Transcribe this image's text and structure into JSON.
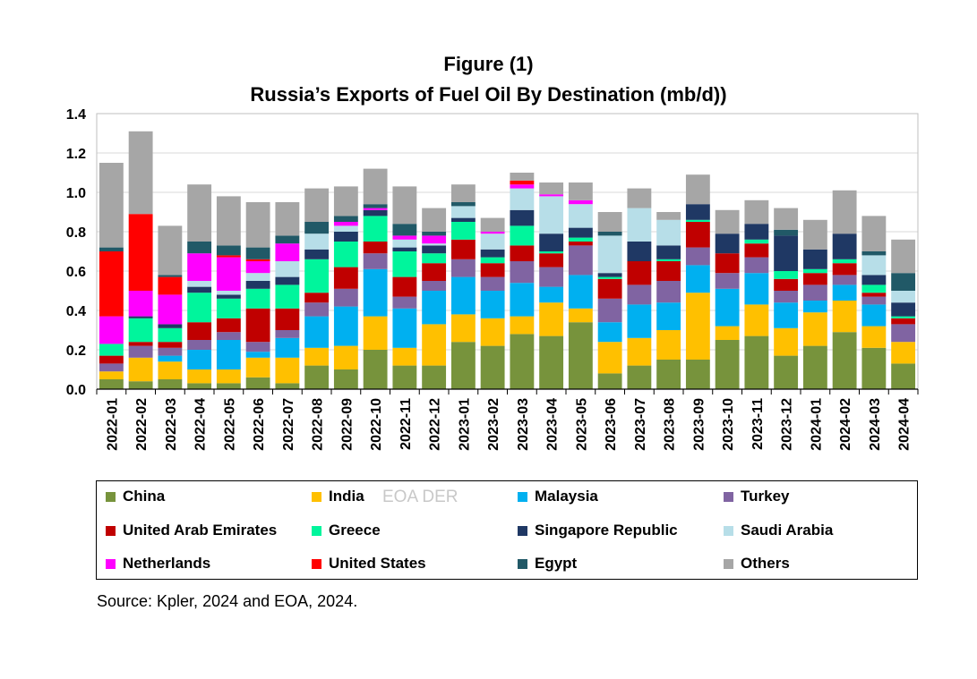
{
  "title_line1": "Figure (1)",
  "title_line2": "Russia’s Exports of Fuel Oil By Destination (mb/d))",
  "source": "Source: Kpler, 2024 and EOA, 2024.",
  "watermark": "EOA DER",
  "chart_data": {
    "type": "bar",
    "stacked": true,
    "title": "Russia’s Exports of Fuel Oil By Destination (mb/d))",
    "ylim": [
      0,
      1.4
    ],
    "yticks": [
      "0.0",
      "0.2",
      "0.4",
      "0.6",
      "0.8",
      "1.0",
      "1.2",
      "1.4"
    ],
    "grid": true,
    "legend_position": "bottom",
    "categories": [
      "2022-01",
      "2022-02",
      "2022-03",
      "2022-04",
      "2022-05",
      "2022-06",
      "2022-07",
      "2022-08",
      "2022-09",
      "2022-10",
      "2022-11",
      "2022-12",
      "2023-01",
      "2023-02",
      "2023-03",
      "2023-04",
      "2023-05",
      "2023-06",
      "2023-07",
      "2023-08",
      "2023-09",
      "2023-10",
      "2023-11",
      "2023-12",
      "2024-01",
      "2024-02",
      "2024-03",
      "2024-04"
    ],
    "series": [
      {
        "name": "China",
        "color": "#77933C",
        "values": [
          0.05,
          0.04,
          0.05,
          0.03,
          0.03,
          0.06,
          0.03,
          0.12,
          0.1,
          0.2,
          0.12,
          0.12,
          0.24,
          0.22,
          0.28,
          0.27,
          0.34,
          0.08,
          0.12,
          0.15,
          0.15,
          0.25,
          0.27,
          0.17,
          0.22,
          0.29,
          0.21,
          0.13
        ]
      },
      {
        "name": "India",
        "color": "#FFC000",
        "values": [
          0.04,
          0.12,
          0.09,
          0.07,
          0.07,
          0.1,
          0.13,
          0.09,
          0.12,
          0.17,
          0.09,
          0.21,
          0.14,
          0.14,
          0.09,
          0.17,
          0.07,
          0.16,
          0.14,
          0.15,
          0.34,
          0.07,
          0.16,
          0.14,
          0.17,
          0.16,
          0.11,
          0.11
        ]
      },
      {
        "name": "Malaysia",
        "color": "#00B0F0",
        "values": [
          0,
          0,
          0.03,
          0.1,
          0.15,
          0.03,
          0.1,
          0.16,
          0.2,
          0.24,
          0.2,
          0.17,
          0.19,
          0.14,
          0.17,
          0.08,
          0.17,
          0.1,
          0.17,
          0.14,
          0.14,
          0.19,
          0.16,
          0.13,
          0.06,
          0.08,
          0.11,
          0
        ]
      },
      {
        "name": "Turkey",
        "color": "#8064A2",
        "values": [
          0.04,
          0.06,
          0.04,
          0.05,
          0.04,
          0.05,
          0.04,
          0.07,
          0.09,
          0.08,
          0.06,
          0.05,
          0.09,
          0.07,
          0.11,
          0.1,
          0.15,
          0.12,
          0.1,
          0.11,
          0.09,
          0.08,
          0.08,
          0.06,
          0.08,
          0.05,
          0.04,
          0.09
        ]
      },
      {
        "name": "United Arab Emirates",
        "color": "#C00000",
        "values": [
          0.04,
          0.02,
          0.03,
          0.09,
          0.07,
          0.17,
          0.11,
          0.05,
          0.11,
          0.06,
          0.1,
          0.09,
          0.1,
          0.07,
          0.08,
          0.07,
          0.02,
          0.1,
          0.12,
          0.1,
          0.13,
          0.1,
          0.07,
          0.06,
          0.06,
          0.06,
          0.02,
          0.03
        ]
      },
      {
        "name": "Greece",
        "color": "#00F59C",
        "values": [
          0.06,
          0.12,
          0.07,
          0.15,
          0.1,
          0.1,
          0.12,
          0.17,
          0.13,
          0.13,
          0.13,
          0.05,
          0.09,
          0.03,
          0.1,
          0.01,
          0.02,
          0.01,
          0,
          0.01,
          0.01,
          0,
          0.02,
          0.04,
          0.02,
          0.02,
          0.04,
          0.01
        ]
      },
      {
        "name": "Singapore Republic",
        "color": "#1F3864",
        "values": [
          0,
          0.01,
          0.02,
          0.03,
          0.02,
          0.04,
          0.04,
          0.05,
          0.05,
          0.03,
          0.02,
          0.04,
          0.02,
          0.04,
          0.08,
          0.09,
          0.05,
          0.02,
          0.1,
          0.07,
          0.08,
          0.1,
          0.08,
          0.18,
          0.1,
          0.13,
          0.05,
          0.07
        ]
      },
      {
        "name": "Saudi Arabia",
        "color": "#B7DEE8",
        "values": [
          0,
          0,
          0,
          0.03,
          0.02,
          0.04,
          0.08,
          0.08,
          0.03,
          0,
          0.04,
          0.01,
          0.06,
          0.08,
          0.11,
          0.19,
          0.12,
          0.19,
          0.17,
          0.13,
          0,
          0,
          0,
          0,
          0,
          0,
          0.1,
          0.06
        ]
      },
      {
        "name": "Netherlands",
        "color": "#FF00FF",
        "values": [
          0.14,
          0.13,
          0.15,
          0.14,
          0.17,
          0.06,
          0.09,
          0,
          0.02,
          0.01,
          0.02,
          0.04,
          0,
          0.01,
          0.02,
          0.01,
          0.02,
          0,
          0,
          0,
          0,
          0,
          0,
          0,
          0,
          0,
          0,
          0
        ]
      },
      {
        "name": "United States",
        "color": "#FF0000",
        "values": [
          0.33,
          0.39,
          0.09,
          0,
          0.01,
          0.01,
          0,
          0,
          0,
          0,
          0,
          0,
          0,
          0,
          0.02,
          0,
          0,
          0,
          0,
          0,
          0,
          0,
          0,
          0,
          0,
          0,
          0,
          0
        ]
      },
      {
        "name": "Egypt",
        "color": "#215967",
        "values": [
          0.02,
          0,
          0.01,
          0.06,
          0.05,
          0.06,
          0.04,
          0.06,
          0.03,
          0.02,
          0.06,
          0.02,
          0.02,
          0,
          0,
          0,
          0,
          0.02,
          0,
          0,
          0,
          0,
          0,
          0.03,
          0,
          0,
          0.02,
          0.09
        ]
      },
      {
        "name": "Others",
        "color": "#A6A6A6",
        "values": [
          0.43,
          0.42,
          0.25,
          0.29,
          0.25,
          0.23,
          0.17,
          0.17,
          0.15,
          0.18,
          0.19,
          0.12,
          0.09,
          0.07,
          0.04,
          0.06,
          0.09,
          0.1,
          0.1,
          0.04,
          0.15,
          0.12,
          0.12,
          0.11,
          0.15,
          0.22,
          0.18,
          0.17
        ]
      }
    ]
  }
}
